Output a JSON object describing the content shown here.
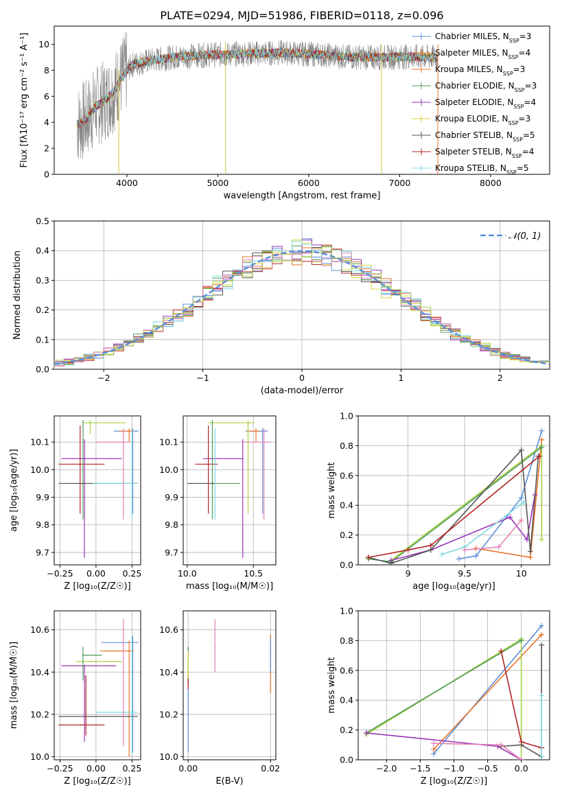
{
  "figure": {
    "title": "PLATE=0294, MJD=51986, FIBERID=0118, z=0.096"
  },
  "legend_spectrum": [
    {
      "text": "Chabrier MILES, N",
      "sub": "SSP",
      "tail": "=3",
      "color": "#5b8fd9"
    },
    {
      "text": "Salpeter MILES, N",
      "sub": "SSP",
      "tail": "=4",
      "color": "#e8742a"
    },
    {
      "text": "Kroupa MILES, N",
      "sub": "SSP",
      "tail": "=3",
      "color": "#e8742a"
    },
    {
      "text": "Chabrier ELODIE, N",
      "sub": "SSP",
      "tail": "=3",
      "color": "#4e9a57"
    },
    {
      "text": "Salpeter ELODIE, N",
      "sub": "SSP",
      "tail": "=4",
      "color": "#9a35b8"
    },
    {
      "text": "Kroupa ELODIE, N",
      "sub": "SSP",
      "tail": "=3",
      "color": "#dcd33a"
    },
    {
      "text": "Chabrier STELIB, N",
      "sub": "SSP",
      "tail": "=5",
      "color": "#555555"
    },
    {
      "text": "Salpeter STELIB, N",
      "sub": "SSP",
      "tail": "=4",
      "color": "#b22222"
    },
    {
      "text": "Kroupa STELIB, N",
      "sub": "SSP",
      "tail": "=5",
      "color": "#7fd8e0"
    }
  ],
  "legend_hist": {
    "label": "𝒩(0, 1)",
    "color": "#5b8fd9"
  },
  "colors": {
    "model_series": [
      "#5b8fd9",
      "#e8742a",
      "#4e9a57",
      "#9a35b8",
      "#dcd33a",
      "#555555",
      "#b22222",
      "#7fd8e0",
      "#e37fb6",
      "#a8d13f"
    ],
    "data_gray": "#808080",
    "grid": "#b0b0b0"
  },
  "chart_data": [
    {
      "id": "spectrum",
      "type": "line",
      "xlabel": "wavelength [Angstrom, rest frame]",
      "ylabel": "Flux [fλ10⁻¹⁷ erg cm⁻² s⁻¹ A⁻¹]",
      "xlim": [
        3200,
        8650
      ],
      "ylim": [
        0,
        11.4
      ],
      "xticks": [
        4000,
        5000,
        6000,
        7000,
        8000
      ],
      "yticks": [
        0,
        2,
        4,
        6,
        8,
        10
      ],
      "grid": false,
      "legend_position": "upper right",
      "continuum_x": [
        3450,
        3550,
        3650,
        3750,
        3850,
        3950,
        4050,
        4150,
        4300,
        4500,
        4700,
        4900,
        5100,
        5300,
        5500,
        5700,
        5900,
        6100,
        6300,
        6500,
        6700,
        6900,
        7100,
        7300,
        7420
      ],
      "continuum_y": [
        3.8,
        4.2,
        5.2,
        5.6,
        6.3,
        7.5,
        8.4,
        8.6,
        8.8,
        9.0,
        9.1,
        9.2,
        9.2,
        9.3,
        9.3,
        9.35,
        9.3,
        9.2,
        9.1,
        9.0,
        9.0,
        9.0,
        9.05,
        9.0,
        9.0
      ],
      "drop_lines_x": [
        3910,
        5085,
        6800,
        7420
      ]
    },
    {
      "id": "residuals",
      "type": "histogram",
      "xlabel": "(data-model)/error",
      "ylabel": "Normed distribution",
      "xlim": [
        -2.5,
        2.5
      ],
      "ylim": [
        0,
        0.5
      ],
      "xticks": [
        -2,
        -1,
        0,
        1,
        2
      ],
      "yticks": [
        0.0,
        0.1,
        0.2,
        0.3,
        0.4,
        0.5
      ],
      "grid": true,
      "legend_position": "upper right",
      "bin_width": 0.1,
      "bin_start": -2.5,
      "reference_curve": "normal(0,1)"
    },
    {
      "id": "age-vs-Z",
      "type": "scatter",
      "xlabel": "Z [log₁₀(Z/Z☉)]",
      "ylabel": "age  [log₁₀(age/yr)]",
      "xlim": [
        -0.29,
        0.31
      ],
      "ylim": [
        9.655,
        10.195
      ],
      "xticks": [
        -0.25,
        0.0,
        0.25
      ],
      "xtick_labels": [
        "−0.25",
        "0.00",
        "0.25"
      ],
      "yticks": [
        9.7,
        9.8,
        9.9,
        10.0,
        10.1
      ],
      "grid": true,
      "points": [
        {
          "x": 0.255,
          "y": 10.14,
          "xerr": [
            0.13,
            0.04
          ],
          "yerr": [
            0.3,
            0.01
          ],
          "color": "#5b8fd9"
        },
        {
          "x": 0.23,
          "y": 10.14,
          "xerr": [
            0.07,
            0.03
          ],
          "yerr": [
            0.04,
            0.01
          ],
          "color": "#e8742a"
        },
        {
          "x": -0.04,
          "y": 10.17,
          "xerr": [
            0.05,
            0.25
          ],
          "yerr": [
            0.04,
            0.01
          ],
          "color": "#a8d13f"
        },
        {
          "x": -0.08,
          "y": 10.04,
          "xerr": [
            0.16,
            0.26
          ],
          "yerr": [
            0.36,
            0.07
          ],
          "color": "#9a35b8"
        },
        {
          "x": -0.11,
          "y": 10.02,
          "xerr": [
            0.15,
            0.17
          ],
          "yerr": [
            0.18,
            0.14
          ],
          "color": "#b22222"
        },
        {
          "x": -0.09,
          "y": 9.95,
          "xerr": [
            0.16,
            0.38
          ],
          "yerr": [
            0.13,
            0.23
          ],
          "color": "#4e9a57"
        },
        {
          "x": 0.0,
          "y": 9.95,
          "xerr": [
            0.26,
            0.29
          ],
          "yerr": [
            0.0,
            0.0
          ],
          "color": "#555555"
        },
        {
          "x": 0.25,
          "y": 9.95,
          "xerr": [
            0.27,
            0.04
          ],
          "yerr": [
            0.13,
            0.2
          ],
          "color": "#7fd8e0"
        },
        {
          "x": 0.19,
          "y": 10.1,
          "xerr": [
            0.19,
            0.05
          ],
          "yerr": [
            0.28,
            0.05
          ],
          "color": "#e37fb6"
        }
      ]
    },
    {
      "id": "age-vs-mass",
      "type": "scatter",
      "xlabel": "mass [log₁₀(M/M☉)]",
      "ylabel": "",
      "xlim": [
        9.97,
        10.67
      ],
      "ylim": [
        9.655,
        10.195
      ],
      "xticks": [
        10.0,
        10.5
      ],
      "xtick_labels": [
        "10.0",
        "10.5"
      ],
      "yticks": [
        9.7,
        9.8,
        9.9,
        10.0,
        10.1
      ],
      "grid": true,
      "points": [
        {
          "x": 10.57,
          "y": 10.14,
          "xerr": [
            0.13,
            0.04
          ],
          "yerr": [
            0.3,
            0.01
          ],
          "color": "#5b8fd9"
        },
        {
          "x": 10.52,
          "y": 10.14,
          "xerr": [
            0.07,
            0.03
          ],
          "yerr": [
            0.04,
            0.01
          ],
          "color": "#e8742a"
        },
        {
          "x": 10.46,
          "y": 10.17,
          "xerr": [
            0.3,
            0.05
          ],
          "yerr": [
            0.33,
            0.01
          ],
          "color": "#a8d13f"
        },
        {
          "x": 10.42,
          "y": 10.04,
          "xerr": [
            0.3,
            0.0
          ],
          "yerr": [
            0.36,
            0.07
          ],
          "color": "#9a35b8"
        },
        {
          "x": 10.16,
          "y": 10.02,
          "xerr": [
            0.1,
            0.07
          ],
          "yerr": [
            0.18,
            0.14
          ],
          "color": "#b22222"
        },
        {
          "x": 10.19,
          "y": 9.95,
          "xerr": [
            0.18,
            0.21
          ],
          "yerr": [
            0.13,
            0.23
          ],
          "color": "#4e9a57"
        },
        {
          "x": 10.2,
          "y": 9.95,
          "xerr": [
            0.2,
            0.0
          ],
          "yerr": [
            0.0,
            0.0
          ],
          "color": "#555555"
        },
        {
          "x": 10.21,
          "y": 9.95,
          "xerr": [
            0.0,
            0.0
          ],
          "yerr": [
            0.13,
            0.2
          ],
          "color": "#7fd8e0"
        },
        {
          "x": 10.58,
          "y": 10.1,
          "xerr": [
            0.17,
            0.05
          ],
          "yerr": [
            0.28,
            0.05
          ],
          "color": "#e37fb6"
        }
      ]
    },
    {
      "id": "weight-vs-age",
      "type": "line",
      "xlabel": "age  [log₁₀(age/yr)]",
      "ylabel": "mass weight",
      "xlim": [
        8.56,
        10.25
      ],
      "ylim": [
        0,
        1.0
      ],
      "xticks": [
        9.0,
        9.5,
        10.0
      ],
      "yticks": [
        0.0,
        0.2,
        0.4,
        0.6,
        0.8,
        1.0
      ],
      "grid": true,
      "series": [
        {
          "color": "#5b8fd9",
          "x": [
            9.45,
            9.6,
            10.0,
            10.18
          ],
          "y": [
            0.04,
            0.06,
            0.45,
            0.9
          ]
        },
        {
          "color": "#e8742a",
          "x": [
            9.6,
            10.08,
            10.18
          ],
          "y": [
            0.11,
            0.05,
            0.84
          ]
        },
        {
          "color": "#a8d13f",
          "x": [
            8.85,
            10.18,
            10.18
          ],
          "y": [
            0.03,
            0.8,
            0.17
          ]
        },
        {
          "color": "#4e9a57",
          "x": [
            8.65,
            8.85,
            10.18
          ],
          "y": [
            0.04,
            0.02,
            0.79
          ]
        },
        {
          "color": "#9a35b8",
          "x": [
            8.85,
            9.2,
            9.9,
            10.05,
            10.12
          ],
          "y": [
            0.03,
            0.1,
            0.32,
            0.17,
            0.47
          ]
        },
        {
          "color": "#555555",
          "x": [
            8.65,
            8.85,
            9.2,
            10.0,
            10.08,
            10.15
          ],
          "y": [
            0.05,
            0.01,
            0.1,
            0.77,
            0.09,
            0.73
          ]
        },
        {
          "color": "#b22222",
          "x": [
            8.65,
            9.0,
            9.2,
            10.16
          ],
          "y": [
            0.05,
            0.1,
            0.13,
            0.73
          ]
        },
        {
          "color": "#7fd8e0",
          "x": [
            9.3,
            9.5,
            10.02
          ],
          "y": [
            0.07,
            0.12,
            0.42
          ]
        },
        {
          "color": "#e37fb6",
          "x": [
            9.5,
            9.8,
            10.0
          ],
          "y": [
            0.1,
            0.12,
            0.3
          ]
        }
      ]
    },
    {
      "id": "mass-vs-Z",
      "type": "scatter",
      "xlabel": "Z [log₁₀(Z/Z☉)]",
      "ylabel": "mass [log₁₀(M/M☉)]",
      "xlim": [
        -0.29,
        0.31
      ],
      "ylim": [
        9.985,
        10.69
      ],
      "xticks": [
        -0.25,
        0.0,
        0.25
      ],
      "xtick_labels": [
        "−0.25",
        "0.00",
        "0.25"
      ],
      "yticks": [
        10.0,
        10.2,
        10.4,
        10.6
      ],
      "grid": true,
      "points": [
        {
          "x": 0.255,
          "y": 10.54,
          "xerr": [
            0.22,
            0.04
          ],
          "yerr": [
            0.52,
            0.03
          ],
          "color": "#5b8fd9"
        },
        {
          "x": 0.23,
          "y": 10.5,
          "xerr": [
            0.2,
            0.03
          ],
          "yerr": [
            0.5,
            0.05
          ],
          "color": "#e8742a"
        },
        {
          "x": -0.04,
          "y": 10.45,
          "xerr": [
            0.1,
            0.22
          ],
          "yerr": [
            0.0,
            0.0
          ],
          "color": "#a8d13f"
        },
        {
          "x": -0.08,
          "y": 10.43,
          "xerr": [
            0.16,
            0.22
          ],
          "yerr": [
            0.36,
            0.0
          ],
          "color": "#9a35b8"
        },
        {
          "x": -0.11,
          "y": 10.15,
          "xerr": [
            0.15,
            0.17
          ],
          "yerr": [
            0.0,
            0.0
          ],
          "color": "#b22222"
        },
        {
          "x": -0.09,
          "y": 10.48,
          "xerr": [
            0.0,
            0.13
          ],
          "yerr": [
            0.12,
            0.04
          ],
          "color": "#4e9a57"
        },
        {
          "x": 0.0,
          "y": 10.19,
          "xerr": [
            0.26,
            0.29
          ],
          "yerr": [
            0.0,
            0.0
          ],
          "color": "#555555"
        },
        {
          "x": 0.25,
          "y": 10.21,
          "xerr": [
            0.25,
            0.04
          ],
          "yerr": [
            0.2,
            0.36
          ],
          "color": "#7fd8e0"
        },
        {
          "x": 0.19,
          "y": 10.5,
          "xerr": [
            0.0,
            0.0
          ],
          "yerr": [
            0.45,
            0.15
          ],
          "color": "#e37fb6"
        },
        {
          "x": -0.07,
          "y": 10.38,
          "xerr": [
            0.0,
            0.0
          ],
          "yerr": [
            0.28,
            0.0
          ],
          "color": "#b22222"
        }
      ]
    },
    {
      "id": "mass-vs-EBV",
      "type": "scatter",
      "xlabel": "E(B-V)",
      "ylabel": "",
      "xlim": [
        -0.0012,
        0.0213
      ],
      "ylim": [
        9.985,
        10.69
      ],
      "xticks": [
        0.0,
        0.02
      ],
      "xtick_labels": [
        "0.00",
        "0.02"
      ],
      "yticks": [
        10.0,
        10.2,
        10.4,
        10.6
      ],
      "grid": true,
      "points": [
        {
          "x": 0.0,
          "y": 10.35,
          "xerr": [
            0.0,
            0.0
          ],
          "yerr": [
            0.33,
            0.17
          ],
          "color": "#5b8fd9"
        },
        {
          "x": 0.0,
          "y": 10.38,
          "xerr": [
            0.0,
            0.0
          ],
          "yerr": [
            0.02,
            0.14
          ],
          "color": "#4e9a57"
        },
        {
          "x": 0.0,
          "y": 10.36,
          "xerr": [
            0.0,
            0.0
          ],
          "yerr": [
            0.04,
            0.04
          ],
          "color": "#b22222"
        },
        {
          "x": 0.0,
          "y": 10.4,
          "xerr": [
            0.0,
            0.0
          ],
          "yerr": [
            0.03,
            0.1
          ],
          "color": "#dcd33a"
        },
        {
          "x": 0.0065,
          "y": 10.52,
          "xerr": [
            0.0,
            0.0
          ],
          "yerr": [
            0.12,
            0.13
          ],
          "color": "#e37fb6"
        },
        {
          "x": 0.02,
          "y": 10.43,
          "xerr": [
            0.0,
            0.0
          ],
          "yerr": [
            0.13,
            0.15
          ],
          "color": "#e8742a"
        },
        {
          "x": 0.02,
          "y": 10.5,
          "xerr": [
            0.0,
            0.0
          ],
          "yerr": [
            0.1,
            0.06
          ],
          "color": "#5b8fd9"
        }
      ]
    },
    {
      "id": "weight-vs-Z",
      "type": "line",
      "xlabel": "Z [log₁₀(Z/Z☉)]",
      "ylabel": "mass weight",
      "xlim": [
        -2.42,
        0.42
      ],
      "ylim": [
        0,
        1.0
      ],
      "xticks": [
        -2.0,
        -1.5,
        -1.0,
        -0.5,
        0.0
      ],
      "xtick_labels": [
        "−2.0",
        "−1.5",
        "−1.0",
        "−0.5",
        "0.0"
      ],
      "yticks": [
        0.0,
        0.2,
        0.4,
        0.6,
        0.8,
        1.0
      ],
      "grid": true,
      "series": [
        {
          "color": "#5b8fd9",
          "x": [
            -1.3,
            0.3
          ],
          "y": [
            0.04,
            0.9
          ]
        },
        {
          "color": "#e8742a",
          "x": [
            -1.3,
            0.3
          ],
          "y": [
            0.07,
            0.84
          ]
        },
        {
          "color": "#a8d13f",
          "x": [
            -2.3,
            0.0,
            0.0
          ],
          "y": [
            0.17,
            0.81,
            0.0
          ]
        },
        {
          "color": "#4e9a57",
          "x": [
            -2.3,
            0.0
          ],
          "y": [
            0.18,
            0.8
          ]
        },
        {
          "color": "#9a35b8",
          "x": [
            -2.3,
            -0.35,
            0.0
          ],
          "y": [
            0.18,
            0.09,
            0.0
          ]
        },
        {
          "color": "#555555",
          "x": [
            -0.3,
            0.0,
            0.3,
            0.3
          ],
          "y": [
            0.09,
            0.1,
            0.02,
            0.77
          ]
        },
        {
          "color": "#b22222",
          "x": [
            -0.3,
            0.0,
            0.3
          ],
          "y": [
            0.73,
            0.12,
            0.08
          ]
        },
        {
          "color": "#7fd8e0",
          "x": [
            0.3,
            0.3
          ],
          "y": [
            0.02,
            0.43
          ]
        },
        {
          "color": "#e37fb6",
          "x": [
            -1.3,
            -0.3,
            0.0
          ],
          "y": [
            0.11,
            0.1,
            0.0
          ]
        }
      ]
    }
  ]
}
